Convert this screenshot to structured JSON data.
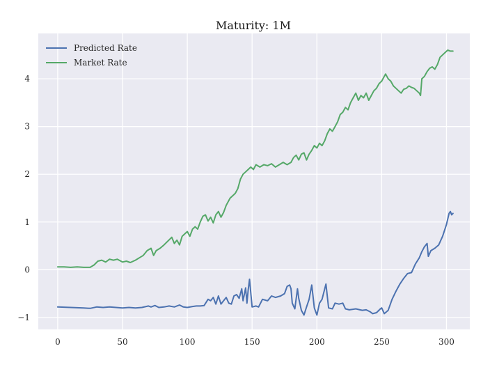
{
  "chart_data": {
    "type": "line",
    "title": "Maturity: 1M",
    "xlabel": "",
    "ylabel": "",
    "xlim": [
      -15,
      318
    ],
    "ylim": [
      -1.25,
      4.95
    ],
    "x_ticks": [
      0,
      50,
      100,
      150,
      200,
      250,
      300
    ],
    "y_ticks": [
      -1,
      0,
      1,
      2,
      3,
      4
    ],
    "grid": true,
    "legend": "top-left",
    "colors": {
      "background": "#eaeaf2",
      "grid": "#ffffff",
      "predicted": "#4c72b0",
      "market": "#55a868"
    },
    "series": [
      {
        "name": "Predicted Rate",
        "color": "#4c72b0",
        "points": [
          [
            0,
            -0.78
          ],
          [
            10,
            -0.79
          ],
          [
            20,
            -0.8
          ],
          [
            25,
            -0.81
          ],
          [
            30,
            -0.78
          ],
          [
            35,
            -0.79
          ],
          [
            40,
            -0.78
          ],
          [
            45,
            -0.79
          ],
          [
            50,
            -0.8
          ],
          [
            55,
            -0.79
          ],
          [
            60,
            -0.8
          ],
          [
            65,
            -0.79
          ],
          [
            70,
            -0.76
          ],
          [
            72,
            -0.78
          ],
          [
            75,
            -0.75
          ],
          [
            78,
            -0.79
          ],
          [
            82,
            -0.78
          ],
          [
            86,
            -0.76
          ],
          [
            90,
            -0.78
          ],
          [
            94,
            -0.74
          ],
          [
            97,
            -0.78
          ],
          [
            100,
            -0.79
          ],
          [
            104,
            -0.77
          ],
          [
            107,
            -0.76
          ],
          [
            110,
            -0.76
          ],
          [
            113,
            -0.75
          ],
          [
            116,
            -0.62
          ],
          [
            118,
            -0.65
          ],
          [
            120,
            -0.58
          ],
          [
            122,
            -0.72
          ],
          [
            124,
            -0.55
          ],
          [
            126,
            -0.72
          ],
          [
            128,
            -0.65
          ],
          [
            130,
            -0.58
          ],
          [
            132,
            -0.7
          ],
          [
            134,
            -0.72
          ],
          [
            136,
            -0.55
          ],
          [
            138,
            -0.52
          ],
          [
            140,
            -0.6
          ],
          [
            142,
            -0.4
          ],
          [
            143,
            -0.65
          ],
          [
            145,
            -0.38
          ],
          [
            146,
            -0.7
          ],
          [
            147,
            -0.42
          ],
          [
            148,
            -0.2
          ],
          [
            150,
            -0.78
          ],
          [
            153,
            -0.76
          ],
          [
            155,
            -0.78
          ],
          [
            158,
            -0.62
          ],
          [
            162,
            -0.65
          ],
          [
            165,
            -0.55
          ],
          [
            168,
            -0.58
          ],
          [
            172,
            -0.55
          ],
          [
            175,
            -0.5
          ],
          [
            177,
            -0.35
          ],
          [
            179,
            -0.32
          ],
          [
            180,
            -0.4
          ],
          [
            181,
            -0.7
          ],
          [
            183,
            -0.82
          ],
          [
            185,
            -0.4
          ],
          [
            186,
            -0.6
          ],
          [
            188,
            -0.85
          ],
          [
            190,
            -0.95
          ],
          [
            192,
            -0.78
          ],
          [
            194,
            -0.62
          ],
          [
            196,
            -0.32
          ],
          [
            198,
            -0.8
          ],
          [
            200,
            -0.95
          ],
          [
            202,
            -0.7
          ],
          [
            204,
            -0.62
          ],
          [
            207,
            -0.3
          ],
          [
            209,
            -0.8
          ],
          [
            212,
            -0.82
          ],
          [
            214,
            -0.7
          ],
          [
            217,
            -0.72
          ],
          [
            220,
            -0.7
          ],
          [
            222,
            -0.82
          ],
          [
            225,
            -0.84
          ],
          [
            230,
            -0.82
          ],
          [
            235,
            -0.85
          ],
          [
            238,
            -0.84
          ],
          [
            241,
            -0.88
          ],
          [
            243,
            -0.92
          ],
          [
            246,
            -0.9
          ],
          [
            249,
            -0.82
          ],
          [
            250,
            -0.8
          ],
          [
            252,
            -0.92
          ],
          [
            255,
            -0.85
          ],
          [
            258,
            -0.62
          ],
          [
            261,
            -0.45
          ],
          [
            264,
            -0.3
          ],
          [
            267,
            -0.18
          ],
          [
            270,
            -0.08
          ],
          [
            273,
            -0.06
          ],
          [
            276,
            0.12
          ],
          [
            279,
            0.25
          ],
          [
            281,
            0.38
          ],
          [
            283,
            0.48
          ],
          [
            285,
            0.55
          ],
          [
            286,
            0.28
          ],
          [
            288,
            0.4
          ],
          [
            291,
            0.45
          ],
          [
            294,
            0.52
          ],
          [
            297,
            0.7
          ],
          [
            300,
            0.95
          ],
          [
            302,
            1.18
          ],
          [
            303,
            1.22
          ],
          [
            304,
            1.15
          ],
          [
            305,
            1.18
          ]
        ]
      },
      {
        "name": "Market Rate",
        "color": "#55a868",
        "points": [
          [
            0,
            0.06
          ],
          [
            5,
            0.06
          ],
          [
            10,
            0.05
          ],
          [
            15,
            0.06
          ],
          [
            20,
            0.05
          ],
          [
            25,
            0.05
          ],
          [
            28,
            0.1
          ],
          [
            31,
            0.18
          ],
          [
            34,
            0.2
          ],
          [
            37,
            0.16
          ],
          [
            40,
            0.22
          ],
          [
            43,
            0.2
          ],
          [
            46,
            0.22
          ],
          [
            50,
            0.16
          ],
          [
            53,
            0.18
          ],
          [
            56,
            0.15
          ],
          [
            60,
            0.2
          ],
          [
            63,
            0.25
          ],
          [
            66,
            0.3
          ],
          [
            69,
            0.4
          ],
          [
            72,
            0.45
          ],
          [
            74,
            0.3
          ],
          [
            76,
            0.4
          ],
          [
            79,
            0.45
          ],
          [
            82,
            0.52
          ],
          [
            85,
            0.6
          ],
          [
            88,
            0.68
          ],
          [
            90,
            0.55
          ],
          [
            92,
            0.62
          ],
          [
            94,
            0.52
          ],
          [
            96,
            0.7
          ],
          [
            98,
            0.75
          ],
          [
            100,
            0.8
          ],
          [
            102,
            0.7
          ],
          [
            104,
            0.85
          ],
          [
            106,
            0.9
          ],
          [
            108,
            0.85
          ],
          [
            110,
            1.0
          ],
          [
            112,
            1.12
          ],
          [
            114,
            1.15
          ],
          [
            116,
            1.02
          ],
          [
            118,
            1.1
          ],
          [
            120,
            0.98
          ],
          [
            122,
            1.15
          ],
          [
            124,
            1.22
          ],
          [
            126,
            1.1
          ],
          [
            128,
            1.2
          ],
          [
            130,
            1.35
          ],
          [
            133,
            1.5
          ],
          [
            135,
            1.55
          ],
          [
            137,
            1.6
          ],
          [
            139,
            1.7
          ],
          [
            141,
            1.9
          ],
          [
            143,
            2.0
          ],
          [
            145,
            2.05
          ],
          [
            147,
            2.1
          ],
          [
            149,
            2.15
          ],
          [
            151,
            2.1
          ],
          [
            153,
            2.2
          ],
          [
            156,
            2.15
          ],
          [
            159,
            2.2
          ],
          [
            162,
            2.18
          ],
          [
            165,
            2.22
          ],
          [
            168,
            2.15
          ],
          [
            171,
            2.2
          ],
          [
            174,
            2.25
          ],
          [
            177,
            2.2
          ],
          [
            180,
            2.25
          ],
          [
            182,
            2.35
          ],
          [
            184,
            2.4
          ],
          [
            186,
            2.3
          ],
          [
            188,
            2.42
          ],
          [
            190,
            2.45
          ],
          [
            192,
            2.3
          ],
          [
            194,
            2.42
          ],
          [
            196,
            2.5
          ],
          [
            198,
            2.6
          ],
          [
            200,
            2.55
          ],
          [
            202,
            2.65
          ],
          [
            204,
            2.6
          ],
          [
            206,
            2.7
          ],
          [
            208,
            2.85
          ],
          [
            210,
            2.95
          ],
          [
            212,
            2.9
          ],
          [
            214,
            3.0
          ],
          [
            216,
            3.1
          ],
          [
            218,
            3.25
          ],
          [
            220,
            3.3
          ],
          [
            222,
            3.4
          ],
          [
            224,
            3.35
          ],
          [
            226,
            3.5
          ],
          [
            228,
            3.6
          ],
          [
            230,
            3.7
          ],
          [
            232,
            3.55
          ],
          [
            234,
            3.65
          ],
          [
            236,
            3.6
          ],
          [
            238,
            3.7
          ],
          [
            240,
            3.55
          ],
          [
            242,
            3.65
          ],
          [
            244,
            3.75
          ],
          [
            246,
            3.8
          ],
          [
            248,
            3.9
          ],
          [
            250,
            3.95
          ],
          [
            252,
            4.05
          ],
          [
            253,
            4.1
          ],
          [
            255,
            4.0
          ],
          [
            257,
            3.95
          ],
          [
            259,
            3.85
          ],
          [
            261,
            3.8
          ],
          [
            263,
            3.75
          ],
          [
            265,
            3.7
          ],
          [
            267,
            3.78
          ],
          [
            269,
            3.8
          ],
          [
            271,
            3.85
          ],
          [
            273,
            3.82
          ],
          [
            275,
            3.8
          ],
          [
            277,
            3.75
          ],
          [
            279,
            3.7
          ],
          [
            280,
            3.65
          ],
          [
            281,
            4.0
          ],
          [
            283,
            4.05
          ],
          [
            285,
            4.15
          ],
          [
            287,
            4.22
          ],
          [
            289,
            4.25
          ],
          [
            291,
            4.2
          ],
          [
            293,
            4.3
          ],
          [
            295,
            4.45
          ],
          [
            297,
            4.5
          ],
          [
            299,
            4.55
          ],
          [
            301,
            4.6
          ],
          [
            303,
            4.58
          ],
          [
            305,
            4.58
          ]
        ]
      }
    ]
  }
}
